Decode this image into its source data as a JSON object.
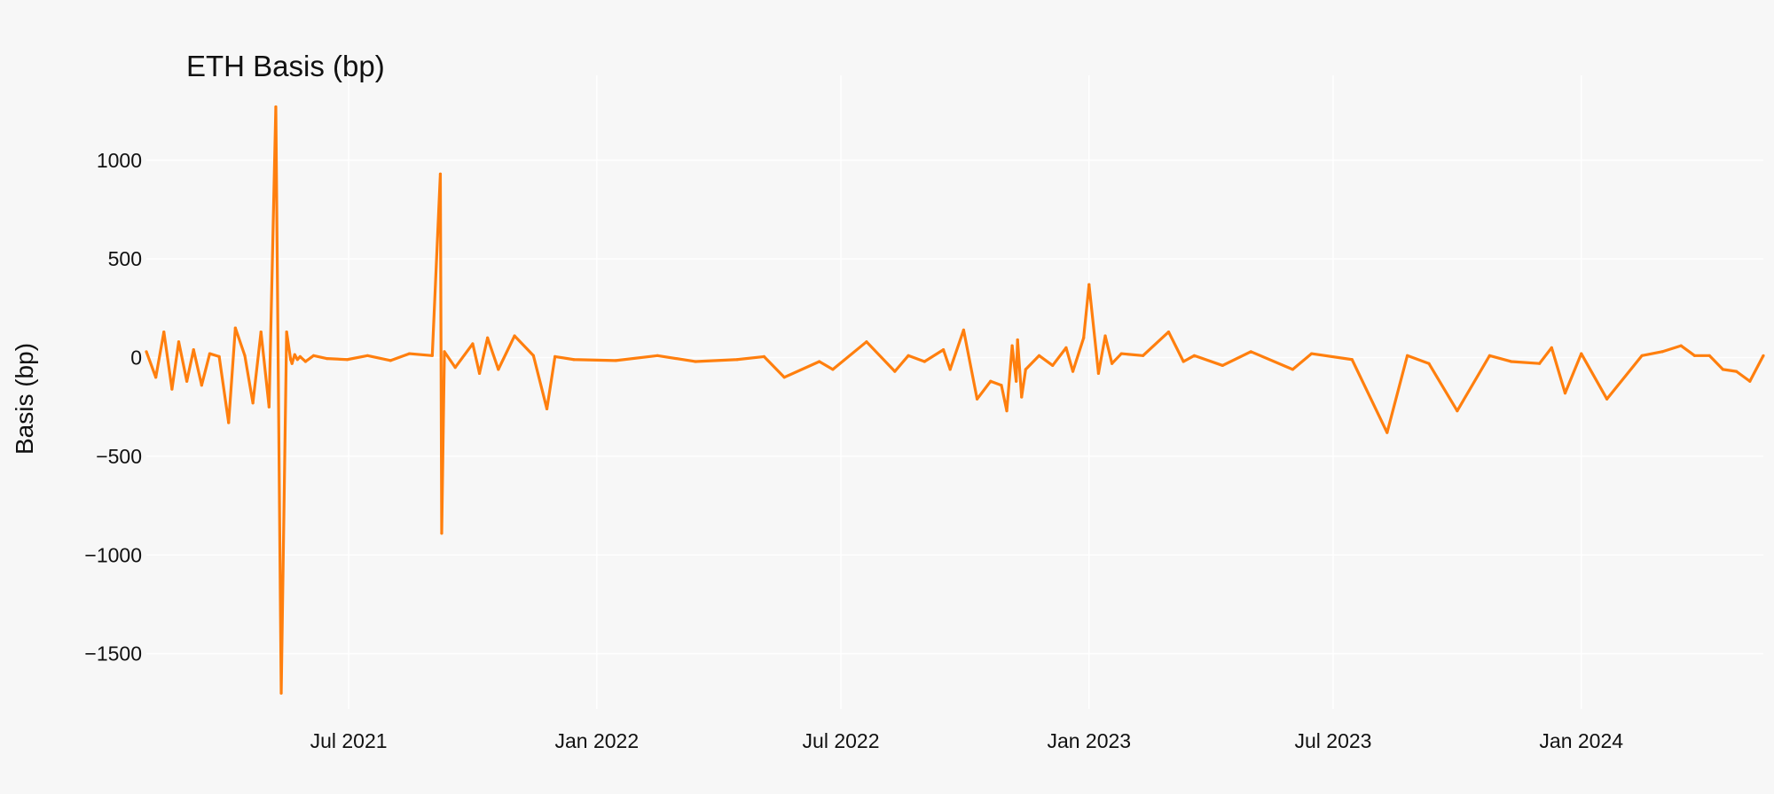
{
  "chart_data": {
    "type": "line",
    "title": "ETH Basis (bp)",
    "xlabel": "",
    "ylabel": "Basis (bp)",
    "xlim": [
      "2021-02-01",
      "2024-05-15"
    ],
    "ylim": [
      -1780,
      1430
    ],
    "grid": true,
    "legend": "none",
    "x_ticks": [
      {
        "label": "Jul 2021",
        "date": "2021-07-01"
      },
      {
        "label": "Jan 2022",
        "date": "2022-01-01"
      },
      {
        "label": "Jul 2022",
        "date": "2022-07-01"
      },
      {
        "label": "Jan 2023",
        "date": "2023-01-01"
      },
      {
        "label": "Jul 2023",
        "date": "2023-07-01"
      },
      {
        "label": "Jan 2024",
        "date": "2024-01-01"
      }
    ],
    "y_ticks": [
      1000,
      500,
      0,
      -500,
      -1000,
      -1500
    ],
    "series": [
      {
        "color": "#ff7f0e",
        "x": [
          "2021-02-01",
          "2021-02-08",
          "2021-02-14",
          "2021-02-20",
          "2021-02-25",
          "2021-03-03",
          "2021-03-08",
          "2021-03-14",
          "2021-03-20",
          "2021-03-27",
          "2021-04-03",
          "2021-04-08",
          "2021-04-15",
          "2021-04-21",
          "2021-04-27",
          "2021-05-03",
          "2021-05-08",
          "2021-05-12",
          "2021-05-16",
          "2021-05-19",
          "2021-05-20",
          "2021-05-22",
          "2021-05-24",
          "2021-05-26",
          "2021-05-30",
          "2021-06-05",
          "2021-06-15",
          "2021-06-30",
          "2021-07-15",
          "2021-08-01",
          "2021-08-15",
          "2021-09-01",
          "2021-09-07",
          "2021-09-08",
          "2021-09-10",
          "2021-09-18",
          "2021-10-01",
          "2021-10-06",
          "2021-10-12",
          "2021-10-20",
          "2021-11-01",
          "2021-11-15",
          "2021-11-25",
          "2021-12-01",
          "2021-12-15",
          "2022-01-15",
          "2022-02-15",
          "2022-03-15",
          "2022-04-15",
          "2022-05-05",
          "2022-05-20",
          "2022-06-15",
          "2022-06-25",
          "2022-07-20",
          "2022-08-10",
          "2022-08-20",
          "2022-09-01",
          "2022-09-15",
          "2022-09-20",
          "2022-09-30",
          "2022-10-10",
          "2022-10-20",
          "2022-10-28",
          "2022-11-01",
          "2022-11-05",
          "2022-11-08",
          "2022-11-09",
          "2022-11-12",
          "2022-11-15",
          "2022-11-25",
          "2022-12-05",
          "2022-12-15",
          "2022-12-20",
          "2022-12-28",
          "2023-01-01",
          "2023-01-08",
          "2023-01-13",
          "2023-01-18",
          "2023-01-25",
          "2023-02-10",
          "2023-03-01",
          "2023-03-12",
          "2023-03-20",
          "2023-04-10",
          "2023-05-01",
          "2023-06-01",
          "2023-06-15",
          "2023-07-15",
          "2023-08-10",
          "2023-08-25",
          "2023-09-10",
          "2023-10-01",
          "2023-10-25",
          "2023-11-10",
          "2023-12-01",
          "2023-12-10",
          "2023-12-20",
          "2024-01-01",
          "2024-01-20",
          "2024-02-15",
          "2024-03-01",
          "2024-03-15",
          "2024-03-25",
          "2024-04-05",
          "2024-04-15",
          "2024-04-25",
          "2024-05-05",
          "2024-05-15"
        ],
        "values": [
          30,
          -100,
          130,
          -160,
          80,
          -120,
          40,
          -140,
          20,
          5,
          -330,
          150,
          10,
          -230,
          130,
          -250,
          1270,
          -1700,
          130,
          -10,
          -30,
          15,
          -10,
          5,
          -20,
          10,
          -5,
          -10,
          10,
          -15,
          20,
          10,
          930,
          -890,
          30,
          -50,
          70,
          -80,
          100,
          -60,
          110,
          10,
          -260,
          5,
          -10,
          -15,
          10,
          -20,
          -10,
          5,
          -100,
          -20,
          -60,
          80,
          -70,
          10,
          -20,
          40,
          -60,
          140,
          -210,
          -120,
          -140,
          -270,
          60,
          -120,
          90,
          -200,
          -60,
          10,
          -40,
          50,
          -70,
          100,
          370,
          -80,
          110,
          -30,
          20,
          10,
          130,
          -20,
          10,
          -40,
          30,
          -60,
          20,
          -10,
          -380,
          10,
          -30,
          -270,
          10,
          -20,
          -30,
          50,
          -180,
          20,
          -210,
          10,
          30,
          60,
          10,
          10,
          -60,
          -70,
          -120,
          10
        ]
      }
    ]
  }
}
